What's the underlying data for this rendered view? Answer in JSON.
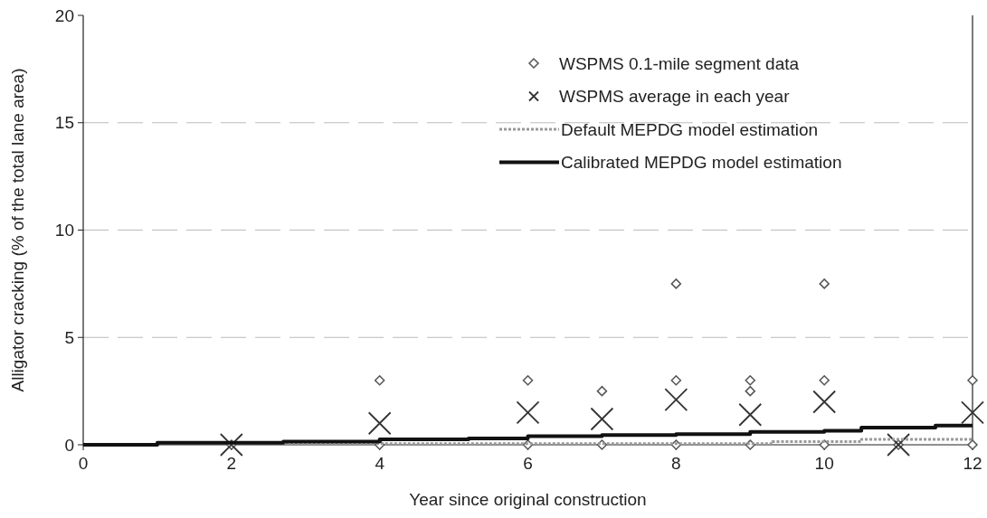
{
  "chart_data": {
    "type": "scatter",
    "xlabel": "Year since original construction",
    "ylabel": "Alligator cracking (% of the total lane area)",
    "xlim": [
      0,
      12
    ],
    "xticks": [
      0,
      2,
      4,
      6,
      8,
      10,
      12
    ],
    "ylim": [
      0,
      20
    ],
    "yticks": [
      0,
      5,
      10,
      15,
      20
    ],
    "grid": "y",
    "legend": "top right",
    "series": [
      {
        "name": "WSPMS 0.1-mile segment data",
        "marker": "diamond",
        "color": "#555555",
        "x": [
          2,
          4,
          4,
          6,
          6,
          7,
          7,
          8,
          8,
          8,
          9,
          9,
          9,
          10,
          10,
          10,
          11,
          12,
          12
        ],
        "values": [
          0,
          3,
          0,
          3,
          0,
          2.5,
          0,
          7.5,
          3,
          0,
          3,
          2.5,
          0,
          7.5,
          3,
          0,
          0,
          3,
          0
        ]
      },
      {
        "name": "WSPMS average in each year",
        "marker": "cross",
        "color": "#333333",
        "x": [
          2,
          4,
          6,
          7,
          8,
          9,
          10,
          11,
          12
        ],
        "values": [
          0,
          1.0,
          1.5,
          1.2,
          2.1,
          1.4,
          2.0,
          0,
          1.5
        ]
      },
      {
        "name": "Default MEPDG model estimation",
        "type": "line",
        "marker": "none",
        "line_style": "dotted",
        "color": "#999999",
        "x": [
          0,
          1,
          1,
          9.3,
          9.3,
          10.5,
          10.5,
          12
        ],
        "values": [
          0,
          0,
          0.05,
          0.05,
          0.15,
          0.15,
          0.25,
          0.25
        ]
      },
      {
        "name": "Calibrated MEPDG model estimation",
        "type": "line",
        "marker": "none",
        "line_style": "solid",
        "color": "#111111",
        "x": [
          0,
          1,
          1,
          2.7,
          2.7,
          4,
          4,
          5.2,
          5.2,
          6,
          6,
          7,
          7,
          8,
          8,
          9,
          9,
          10,
          10,
          10.5,
          10.5,
          11.5,
          11.5,
          12
        ],
        "values": [
          0,
          0,
          0.1,
          0.1,
          0.15,
          0.15,
          0.25,
          0.25,
          0.3,
          0.3,
          0.4,
          0.4,
          0.45,
          0.45,
          0.5,
          0.5,
          0.6,
          0.6,
          0.65,
          0.65,
          0.8,
          0.8,
          0.9,
          0.9
        ]
      }
    ]
  }
}
